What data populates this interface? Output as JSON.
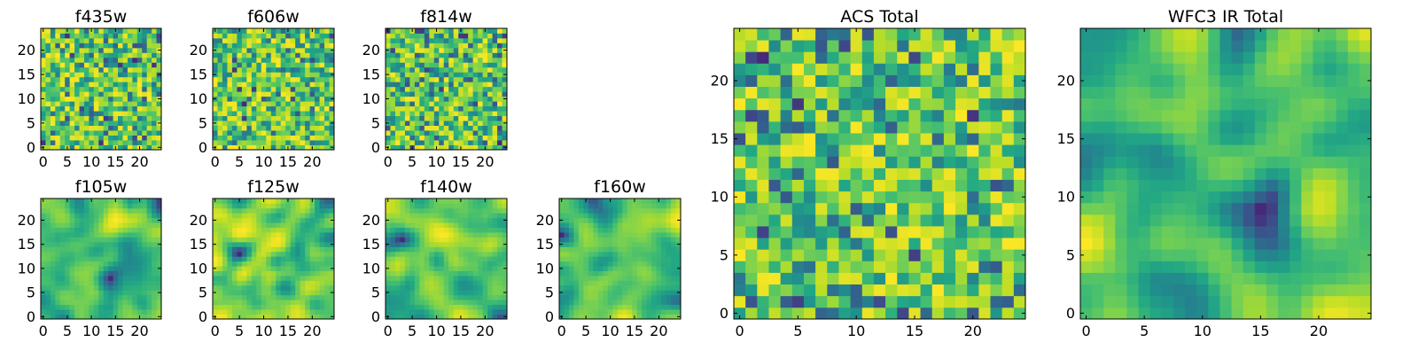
{
  "chart_data": [
    {
      "type": "heatmap",
      "title": "f435w",
      "x_ticks": [
        "0",
        "5",
        "10",
        "15",
        "20"
      ],
      "y_ticks": [
        "0",
        "5",
        "10",
        "15",
        "20"
      ],
      "xlim": [
        -0.5,
        24.5
      ],
      "ylim": [
        -0.5,
        24.5
      ],
      "grid_size": [
        25,
        25
      ],
      "colormap": "viridis",
      "values": "pixel-level random field (not readable)"
    },
    {
      "type": "heatmap",
      "title": "f606w",
      "x_ticks": [
        "0",
        "5",
        "10",
        "15",
        "20"
      ],
      "y_ticks": [
        "0",
        "5",
        "10",
        "15",
        "20"
      ],
      "xlim": [
        -0.5,
        24.5
      ],
      "ylim": [
        -0.5,
        24.5
      ],
      "grid_size": [
        25,
        25
      ],
      "colormap": "viridis",
      "values": "pixel-level random field (not readable)"
    },
    {
      "type": "heatmap",
      "title": "f814w",
      "x_ticks": [
        "0",
        "5",
        "10",
        "15",
        "20"
      ],
      "y_ticks": [
        "0",
        "5",
        "10",
        "15",
        "20"
      ],
      "xlim": [
        -0.5,
        24.5
      ],
      "ylim": [
        -0.5,
        24.5
      ],
      "grid_size": [
        25,
        25
      ],
      "colormap": "viridis",
      "values": "pixel-level random field (not readable)"
    },
    {
      "type": "heatmap",
      "title": "f105w",
      "x_ticks": [
        "0",
        "5",
        "10",
        "15",
        "20"
      ],
      "y_ticks": [
        "0",
        "5",
        "10",
        "15",
        "20"
      ],
      "xlim": [
        -0.5,
        24.5
      ],
      "ylim": [
        -0.5,
        24.5
      ],
      "grid_size": [
        25,
        25
      ],
      "colormap": "viridis",
      "values": "pixel-level smooth field (not readable)"
    },
    {
      "type": "heatmap",
      "title": "f125w",
      "x_ticks": [
        "0",
        "5",
        "10",
        "15",
        "20"
      ],
      "y_ticks": [
        "0",
        "5",
        "10",
        "15",
        "20"
      ],
      "xlim": [
        -0.5,
        24.5
      ],
      "ylim": [
        -0.5,
        24.5
      ],
      "grid_size": [
        25,
        25
      ],
      "colormap": "viridis",
      "values": "pixel-level smooth field (not readable)"
    },
    {
      "type": "heatmap",
      "title": "f140w",
      "x_ticks": [
        "0",
        "5",
        "10",
        "15",
        "20"
      ],
      "y_ticks": [
        "0",
        "5",
        "10",
        "15",
        "20"
      ],
      "xlim": [
        -0.5,
        24.5
      ],
      "ylim": [
        -0.5,
        24.5
      ],
      "grid_size": [
        25,
        25
      ],
      "colormap": "viridis",
      "values": "pixel-level smooth field (not readable)"
    },
    {
      "type": "heatmap",
      "title": "f160w",
      "x_ticks": [
        "0",
        "5",
        "10",
        "15",
        "20"
      ],
      "y_ticks": [
        "0",
        "5",
        "10",
        "15",
        "20"
      ],
      "xlim": [
        -0.5,
        24.5
      ],
      "ylim": [
        -0.5,
        24.5
      ],
      "grid_size": [
        25,
        25
      ],
      "colormap": "viridis",
      "values": "pixel-level smooth field (not readable)"
    },
    {
      "type": "heatmap",
      "title": "ACS Total",
      "x_ticks": [
        "0",
        "5",
        "10",
        "15",
        "20"
      ],
      "y_ticks": [
        "0",
        "5",
        "10",
        "15",
        "20"
      ],
      "xlim": [
        -0.5,
        24.5
      ],
      "ylim": [
        -0.5,
        24.5
      ],
      "grid_size": [
        25,
        25
      ],
      "colormap": "viridis",
      "values": "pixel-level random field (not readable)"
    },
    {
      "type": "heatmap",
      "title": "WFC3 IR Total",
      "x_ticks": [
        "0",
        "5",
        "10",
        "15",
        "20"
      ],
      "y_ticks": [
        "0",
        "5",
        "10",
        "15",
        "20"
      ],
      "xlim": [
        -0.5,
        24.5
      ],
      "ylim": [
        -0.5,
        24.5
      ],
      "grid_size": [
        25,
        25
      ],
      "colormap": "viridis",
      "values": "pixel-level smooth field (not readable)"
    }
  ]
}
